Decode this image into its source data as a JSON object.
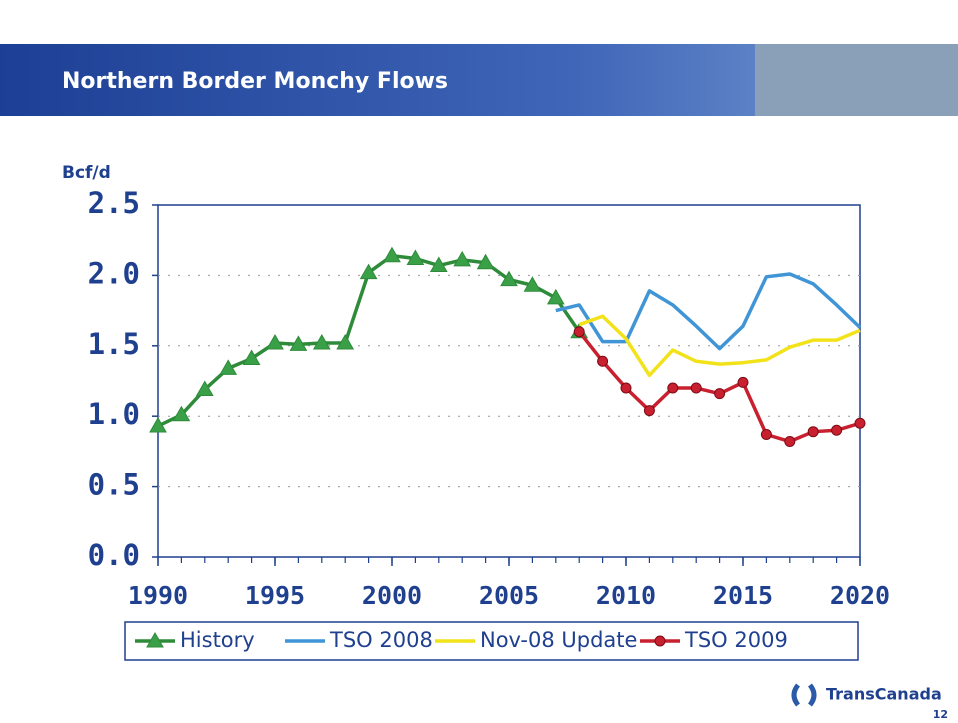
{
  "chart_data": {
    "type": "line",
    "title": "Northern Border Monchy Flows",
    "y_label": "Bcf/d",
    "x": [
      1990,
      1991,
      1992,
      1993,
      1994,
      1995,
      1996,
      1997,
      1998,
      1999,
      2000,
      2001,
      2002,
      2003,
      2004,
      2005,
      2006,
      2007,
      2008,
      2009,
      2010,
      2011,
      2012,
      2013,
      2014,
      2015,
      2016,
      2017,
      2018,
      2019,
      2020
    ],
    "series": [
      {
        "name": "History",
        "color": "#2e8b3a",
        "marker": "triangle",
        "values": [
          0.93,
          1.01,
          1.19,
          1.34,
          1.41,
          1.52,
          1.51,
          1.52,
          1.52,
          2.02,
          2.14,
          2.12,
          2.07,
          2.11,
          2.09,
          1.97,
          1.93,
          1.84,
          1.6,
          null,
          null,
          null,
          null,
          null,
          null,
          null,
          null,
          null,
          null,
          null,
          null
        ]
      },
      {
        "name": "TSO 2008",
        "color": "#3f95d6",
        "marker": "none",
        "values": [
          null,
          null,
          null,
          null,
          null,
          null,
          null,
          null,
          null,
          null,
          null,
          null,
          null,
          null,
          null,
          null,
          null,
          1.75,
          1.79,
          1.53,
          1.53,
          1.89,
          1.79,
          1.64,
          1.48,
          1.64,
          1.99,
          2.01,
          1.94,
          1.79,
          1.63
        ]
      },
      {
        "name": "Nov-08 Update",
        "color": "#f2e21a",
        "marker": "none",
        "values": [
          null,
          null,
          null,
          null,
          null,
          null,
          null,
          null,
          null,
          null,
          null,
          null,
          null,
          null,
          null,
          null,
          null,
          null,
          1.65,
          1.71,
          1.55,
          1.29,
          1.47,
          1.39,
          1.37,
          1.38,
          1.4,
          1.49,
          1.54,
          1.54,
          1.61
        ]
      },
      {
        "name": "TSO 2009",
        "color": "#c8202f",
        "marker": "circle",
        "values": [
          null,
          null,
          null,
          null,
          null,
          null,
          null,
          null,
          null,
          null,
          null,
          null,
          null,
          null,
          null,
          null,
          null,
          null,
          1.6,
          1.39,
          1.2,
          1.04,
          1.2,
          1.2,
          1.16,
          1.24,
          0.87,
          0.82,
          0.89,
          0.9,
          0.95
        ]
      }
    ],
    "xlim": [
      1990,
      2020
    ],
    "xticks": [
      1990,
      1995,
      2000,
      2005,
      2010,
      2015,
      2020
    ],
    "ylim": [
      0,
      2.5
    ],
    "yticks": [
      {
        "value": 0,
        "label": "0.0"
      },
      0.5,
      {
        "value": 1,
        "label": "1.0"
      },
      1.5,
      {
        "value": 2,
        "label": "2.0"
      },
      2.5
    ],
    "grid": true,
    "legend": "bottom"
  },
  "footer": {
    "logo": "TransCanada",
    "page": "12"
  }
}
